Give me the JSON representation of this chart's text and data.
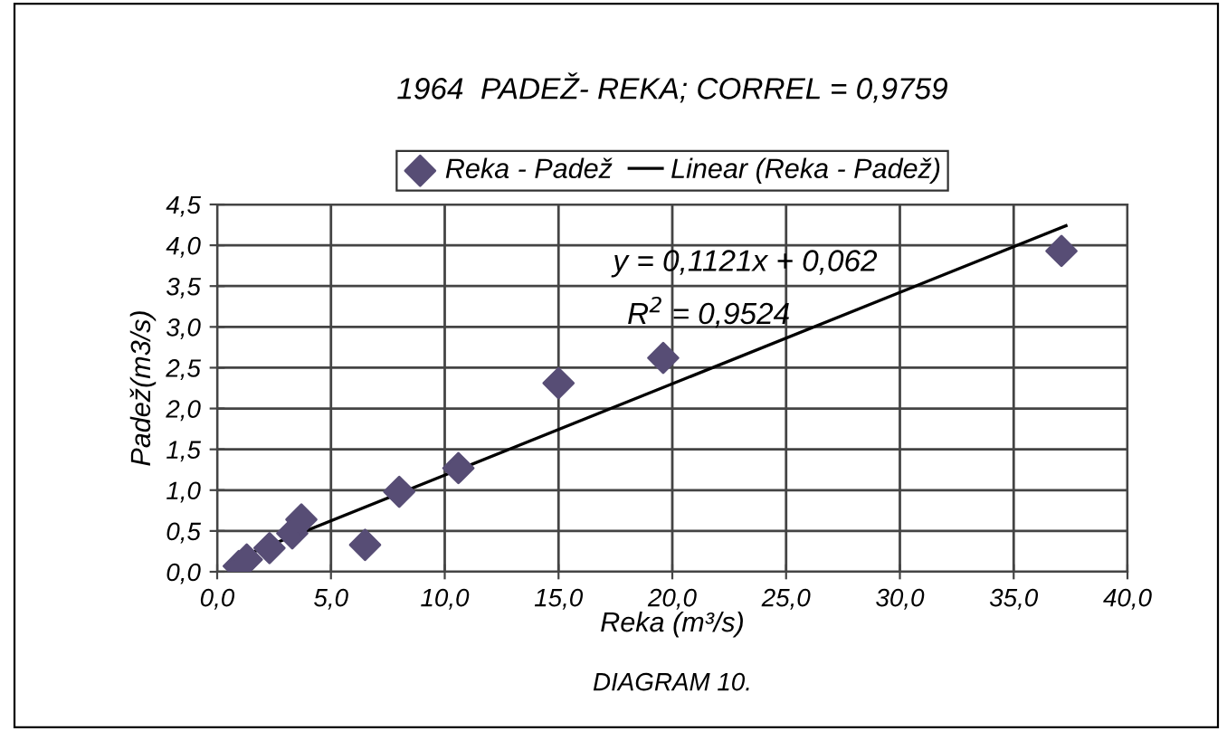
{
  "chart_data": {
    "type": "scatter",
    "title": "1964  PADEŽ- REKA; CORREL = 0,9759",
    "xlabel": "Reka (m³/s)",
    "ylabel": "Padež(m3/s)",
    "series": [
      {
        "name": "Reka - Padež",
        "color": "#574d75",
        "marker": "diamond",
        "x": [
          0.95,
          1.3,
          2.3,
          3.3,
          3.7,
          6.5,
          8.0,
          10.6,
          15.0,
          19.6,
          37.1
        ],
        "values": [
          0.07,
          0.15,
          0.29,
          0.47,
          0.64,
          0.33,
          0.98,
          1.27,
          2.31,
          2.62,
          3.93
        ]
      },
      {
        "name": "Linear (Reka - Padež)",
        "type": "line",
        "color": "#000000",
        "x": [
          0.95,
          37.3
        ],
        "values": [
          0.17,
          4.24
        ]
      }
    ],
    "annotations": [
      "y = 0,1121x + 0,062",
      "R$^{2}$ = 0,9524",
      "DIAGRAM 10."
    ],
    "xlim": [
      0,
      40
    ],
    "xticks": [
      {
        "value": 0,
        "label": "0,0"
      },
      {
        "value": 5,
        "label": "5,0"
      },
      {
        "value": 10,
        "label": "10,0"
      },
      {
        "value": 15,
        "label": "15,0"
      },
      {
        "value": 20,
        "label": "20,0"
      },
      {
        "value": 25,
        "label": "25,0"
      },
      {
        "value": 30,
        "label": "30,0"
      },
      {
        "value": 35,
        "label": "35,0"
      },
      {
        "value": 40,
        "label": "40,0"
      }
    ],
    "ylim": [
      0,
      4.5
    ],
    "yticks": [
      {
        "value": 0,
        "label": "0,0"
      },
      {
        "value": 0.5,
        "label": "0,5"
      },
      {
        "value": 1,
        "label": "1,0"
      },
      {
        "value": 1.5,
        "label": "1,5"
      },
      {
        "value": 2,
        "label": "2,0"
      },
      {
        "value": 2.5,
        "label": "2,5"
      },
      {
        "value": 3,
        "label": "3,0"
      },
      {
        "value": 3.5,
        "label": "3,5"
      },
      {
        "value": 4,
        "label": "4,0"
      },
      {
        "value": 4.5,
        "label": "4,5"
      }
    ],
    "grid": true,
    "legend": "top"
  }
}
